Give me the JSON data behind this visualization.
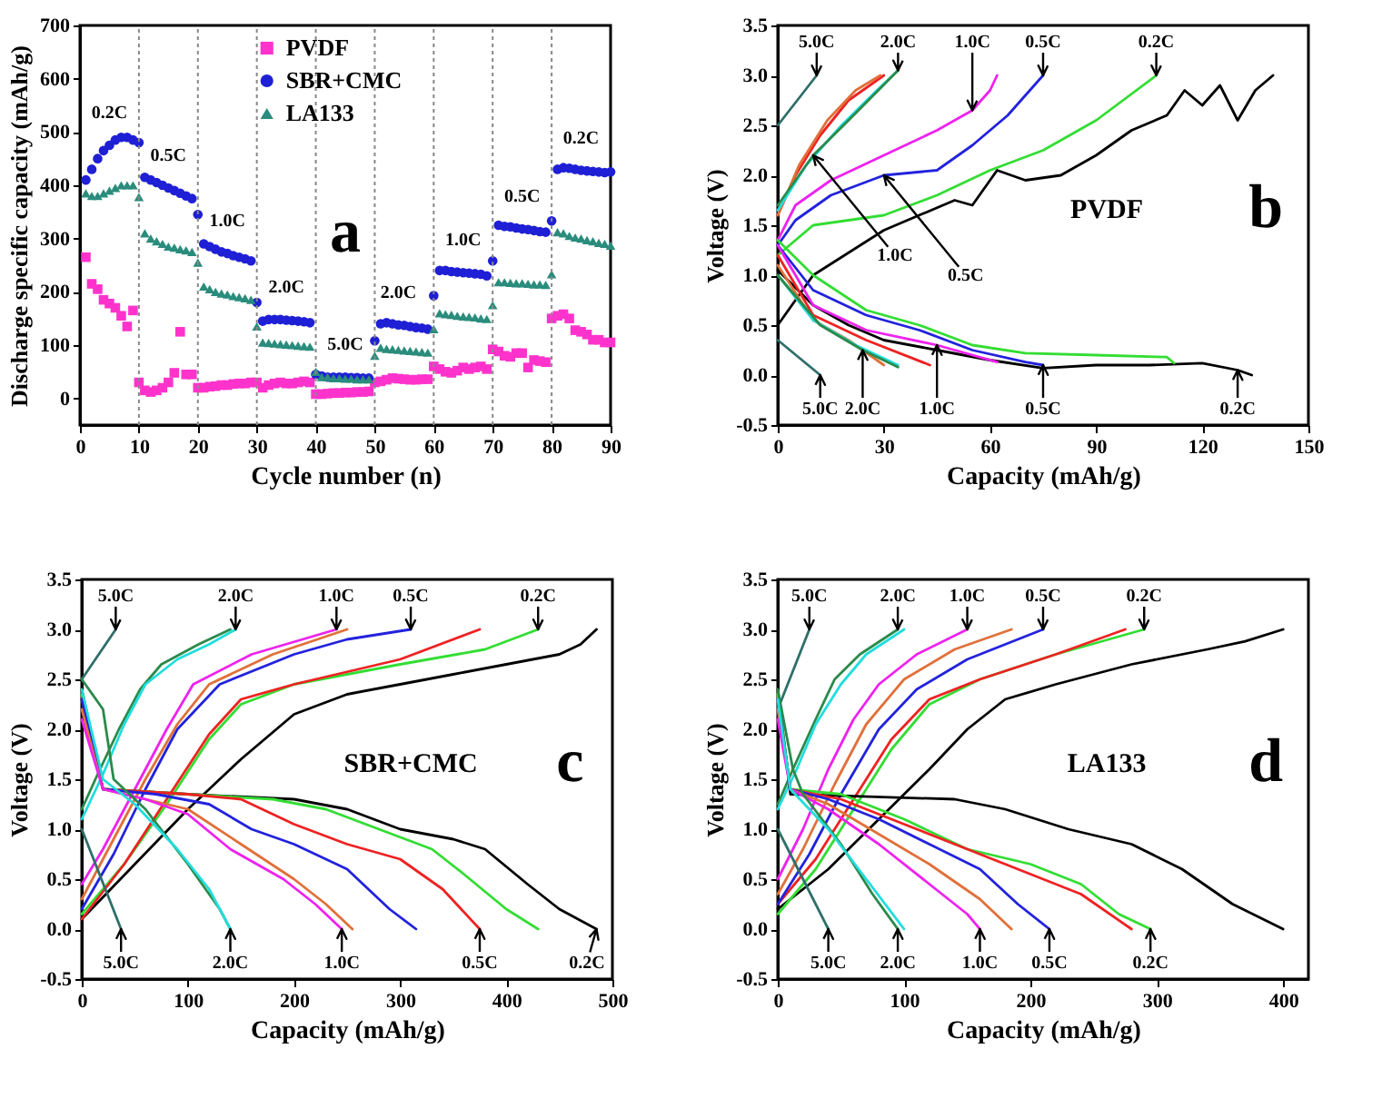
{
  "chart_data": [
    {
      "type": "scatter",
      "xlabel": "Cycle number (n)",
      "ylabel": "Discharge specific capacity (mAh/g)",
      "xlim": [
        0,
        90
      ],
      "ylim": [
        -50,
        700
      ],
      "xticks": [
        0,
        10,
        20,
        30,
        40,
        50,
        60,
        70,
        80,
        90
      ],
      "yticks": [
        0,
        100,
        200,
        300,
        400,
        500,
        600,
        700
      ],
      "legend": "top",
      "x": [
        1,
        2,
        3,
        4,
        5,
        6,
        7,
        8,
        9,
        10,
        11,
        12,
        13,
        14,
        15,
        16,
        17,
        18,
        19,
        20,
        21,
        22,
        23,
        24,
        25,
        26,
        27,
        28,
        29,
        30,
        31,
        32,
        33,
        34,
        35,
        36,
        37,
        38,
        39,
        40,
        41,
        42,
        43,
        44,
        45,
        46,
        47,
        48,
        49,
        50,
        51,
        52,
        53,
        54,
        55,
        56,
        57,
        58,
        59,
        60,
        61,
        62,
        63,
        64,
        65,
        66,
        67,
        68,
        69,
        70,
        71,
        72,
        73,
        74,
        75,
        76,
        77,
        78,
        79,
        80,
        81,
        82,
        83,
        84,
        85,
        86,
        87,
        88,
        89,
        90
      ],
      "series": [
        {
          "name": "PVDF",
          "color": "#ff33cc",
          "marker": "square",
          "values": [
            265,
            215,
            205,
            185,
            178,
            170,
            155,
            135,
            165,
            30,
            15,
            12,
            15,
            20,
            30,
            48,
            125,
            45,
            45,
            20,
            20,
            22,
            23,
            25,
            25,
            27,
            28,
            28,
            30,
            30,
            20,
            25,
            28,
            30,
            28,
            28,
            30,
            32,
            30,
            8,
            8,
            9,
            10,
            10,
            11,
            11,
            12,
            12,
            13,
            30,
            32,
            35,
            38,
            37,
            36,
            35,
            35,
            36,
            36,
            60,
            55,
            50,
            48,
            52,
            58,
            55,
            58,
            60,
            55,
            92,
            88,
            80,
            78,
            85,
            85,
            58,
            72,
            70,
            68,
            150,
            155,
            158,
            150,
            128,
            125,
            120,
            110,
            110,
            105,
            105
          ]
        },
        {
          "name": "SBR+CMC",
          "color": "#1f1fd6",
          "marker": "circle",
          "values": [
            410,
            430,
            450,
            465,
            475,
            485,
            490,
            490,
            485,
            480,
            415,
            410,
            405,
            400,
            395,
            390,
            385,
            380,
            375,
            345,
            290,
            285,
            280,
            275,
            272,
            268,
            265,
            262,
            258,
            180,
            145,
            148,
            148,
            148,
            147,
            146,
            145,
            144,
            142,
            45,
            42,
            40,
            40,
            40,
            40,
            39,
            39,
            38,
            38,
            108,
            140,
            142,
            140,
            138,
            137,
            135,
            133,
            132,
            130,
            193,
            240,
            240,
            238,
            237,
            236,
            235,
            234,
            233,
            230,
            258,
            325,
            323,
            322,
            320,
            318,
            317,
            315,
            313,
            312,
            333,
            430,
            433,
            432,
            430,
            428,
            427,
            426,
            425,
            424,
            425
          ]
        },
        {
          "name": "LA133",
          "color": "#2a8c7c",
          "marker": "triangle",
          "values": [
            385,
            380,
            380,
            385,
            390,
            395,
            400,
            400,
            400,
            378,
            310,
            300,
            295,
            290,
            285,
            283,
            280,
            278,
            275,
            255,
            210,
            205,
            200,
            197,
            195,
            192,
            190,
            188,
            185,
            135,
            105,
            104,
            103,
            102,
            101,
            100,
            99,
            98,
            97,
            50,
            40,
            40,
            38,
            38,
            37,
            37,
            36,
            36,
            36,
            80,
            95,
            93,
            92,
            91,
            90,
            89,
            88,
            87,
            86,
            130,
            160,
            158,
            157,
            155,
            154,
            153,
            152,
            150,
            149,
            175,
            218,
            218,
            217,
            216,
            216,
            215,
            214,
            214,
            213,
            233,
            312,
            310,
            305,
            302,
            300,
            297,
            295,
            292,
            290,
            287
          ]
        }
      ],
      "ref_lines": [
        {
          "axis": "x",
          "value": 10,
          "line_style": "dotted",
          "color": "#888888"
        },
        {
          "axis": "x",
          "value": 20,
          "line_style": "dotted",
          "color": "#888888"
        },
        {
          "axis": "x",
          "value": 30,
          "line_style": "dotted",
          "color": "#888888"
        },
        {
          "axis": "x",
          "value": 40,
          "line_style": "dotted",
          "color": "#888888"
        },
        {
          "axis": "x",
          "value": 50,
          "line_style": "dotted",
          "color": "#888888"
        },
        {
          "axis": "x",
          "value": 60,
          "line_style": "dotted",
          "color": "#888888"
        },
        {
          "axis": "x",
          "value": 70,
          "line_style": "dotted",
          "color": "#888888"
        },
        {
          "axis": "x",
          "value": 80,
          "line_style": "dotted",
          "color": "#888888"
        }
      ],
      "annotations": [
        {
          "text": "0.2C",
          "x": 5,
          "y": 475
        },
        {
          "text": "0.5C",
          "x": 15,
          "y": 395
        },
        {
          "text": "1.0C",
          "x": 25,
          "y": 272
        },
        {
          "text": "2.0C",
          "x": 35,
          "y": 147
        },
        {
          "text": "5.0C",
          "x": 45,
          "y": 40
        },
        {
          "text": "2.0C",
          "x": 54,
          "y": 138
        },
        {
          "text": "1.0C",
          "x": 65,
          "y": 236
        },
        {
          "text": "0.5C",
          "x": 75,
          "y": 318
        },
        {
          "text": "0.2C",
          "x": 85,
          "y": 428
        },
        "a"
      ]
    },
    {
      "type": "line",
      "xlabel": "Capacity (mAh/g)",
      "ylabel": "Voltage (V)",
      "xlim": [
        0,
        150
      ],
      "ylim": [
        -0.5,
        3.5
      ],
      "xticks": [
        0,
        30,
        60,
        90,
        120,
        150
      ],
      "yticks": [
        -0.5,
        {
          "value": 0,
          "label": "0.0"
        },
        0.5,
        {
          "value": 1,
          "label": "1.0"
        },
        1.5,
        {
          "value": 2,
          "label": "2.0"
        },
        2.5,
        {
          "value": 3,
          "label": "3.0"
        },
        3.5
      ],
      "series": [
        {
          "color": "#000000",
          "x": [
            0,
            10,
            30,
            50,
            55,
            62,
            70,
            80,
            90,
            100,
            110,
            115,
            120,
            125,
            130,
            135,
            140
          ],
          "values": [
            0.5,
            1.0,
            1.45,
            1.75,
            1.7,
            2.05,
            1.95,
            2.0,
            2.2,
            2.45,
            2.6,
            2.85,
            2.7,
            2.9,
            2.55,
            2.85,
            3.0
          ]
        },
        {
          "color": "#33dd33",
          "x": [
            0,
            10,
            30,
            45,
            60,
            75,
            90,
            107
          ],
          "values": [
            1.2,
            1.5,
            1.6,
            1.8,
            2.05,
            2.25,
            2.55,
            3.0
          ]
        },
        {
          "color": "#2222dd",
          "x": [
            0,
            5,
            15,
            30,
            45,
            55,
            65,
            75
          ],
          "values": [
            1.3,
            1.55,
            1.8,
            2.0,
            2.05,
            2.3,
            2.6,
            3.0
          ]
        },
        {
          "color": "#ee22ee",
          "x": [
            0,
            5,
            15,
            30,
            45,
            55,
            60,
            62
          ],
          "values": [
            1.35,
            1.7,
            1.95,
            2.2,
            2.45,
            2.65,
            2.85,
            3.0
          ]
        },
        {
          "color": "#ee2222",
          "x": [
            0,
            5,
            12,
            20,
            30
          ],
          "values": [
            1.6,
            2.0,
            2.4,
            2.75,
            3.0
          ]
        },
        {
          "color": "#e0703a",
          "x": [
            0,
            6,
            14,
            22,
            29
          ],
          "values": [
            1.6,
            2.1,
            2.55,
            2.85,
            3.0
          ]
        },
        {
          "color": "#22dddd",
          "x": [
            0,
            8,
            18,
            28,
            34
          ],
          "values": [
            1.65,
            2.1,
            2.5,
            2.85,
            3.05
          ]
        },
        {
          "color": "#2a8a4a",
          "x": [
            0,
            10,
            20,
            34
          ],
          "values": [
            1.7,
            2.2,
            2.55,
            3.05
          ]
        },
        {
          "color": "#2f6f6a",
          "x": [
            0,
            11
          ],
          "values": [
            2.5,
            3.0
          ]
        },
        {
          "color": "#000000",
          "x": [
            0,
            10,
            20,
            30,
            45,
            60,
            75,
            90,
            105,
            120,
            130,
            134
          ],
          "values": [
            1.05,
            0.7,
            0.5,
            0.35,
            0.25,
            0.15,
            0.07,
            0.1,
            0.1,
            0.12,
            0.05,
            0.0
          ]
        },
        {
          "color": "#33dd33",
          "x": [
            0,
            10,
            25,
            40,
            55,
            70,
            90,
            110,
            112
          ],
          "values": [
            1.35,
            1.0,
            0.65,
            0.5,
            0.3,
            0.22,
            0.2,
            0.18,
            0.12
          ]
        },
        {
          "color": "#2222dd",
          "x": [
            0,
            10,
            25,
            40,
            55,
            70,
            75
          ],
          "values": [
            1.3,
            0.85,
            0.6,
            0.45,
            0.25,
            0.13,
            0.1
          ]
        },
        {
          "color": "#ee22ee",
          "x": [
            0,
            10,
            25,
            45,
            62
          ],
          "values": [
            1.3,
            0.7,
            0.45,
            0.3,
            0.13
          ]
        },
        {
          "color": "#ee2222",
          "x": [
            0,
            10,
            25,
            43
          ],
          "values": [
            1.2,
            0.6,
            0.35,
            0.1
          ]
        },
        {
          "color": "#e0703a",
          "x": [
            0,
            10,
            20,
            30
          ],
          "values": [
            1.1,
            0.55,
            0.35,
            0.1
          ]
        },
        {
          "color": "#22dddd",
          "x": [
            0,
            10,
            22,
            34
          ],
          "values": [
            1.0,
            0.55,
            0.3,
            0.1
          ]
        },
        {
          "color": "#2a8a4a",
          "x": [
            0,
            12,
            24,
            34
          ],
          "values": [
            1.0,
            0.5,
            0.25,
            0.08
          ]
        },
        {
          "color": "#2f6f6a",
          "x": [
            0,
            12
          ],
          "values": [
            0.35,
            0.0
          ]
        }
      ],
      "annotations": [
        {
          "text": "5.0C",
          "x": 11,
          "y": 3.0
        },
        {
          "text": "2.0C",
          "x": 34,
          "y": 3.05
        },
        {
          "text": "1.0C",
          "x": 55,
          "y": 2.65
        },
        {
          "text": "0.5C",
          "x": 75,
          "y": 3.0
        },
        {
          "text": "0.2C",
          "x": 107,
          "y": 3.0
        },
        {
          "text": "1.0C",
          "x": 10,
          "y": 2.2
        },
        {
          "text": "0.5C",
          "x": 30,
          "y": 2.0
        },
        {
          "text": "5.0C",
          "x": 12,
          "y": 0.0
        },
        {
          "text": "2.0C",
          "x": 24,
          "y": 0.25
        },
        {
          "text": "1.0C",
          "x": 45,
          "y": 0.3
        },
        {
          "text": "0.5C",
          "x": 75,
          "y": 0.1
        },
        {
          "text": "0.2C",
          "x": 130,
          "y": 0.05
        },
        "PVDF",
        "b"
      ]
    },
    {
      "type": "line",
      "xlabel": "Capacity (mAh/g)",
      "ylabel": "Voltage (V)",
      "xlim": [
        0,
        500
      ],
      "ylim": [
        -0.5,
        3.5
      ],
      "xticks": [
        0,
        100,
        200,
        300,
        400,
        500
      ],
      "yticks": [
        -0.5,
        {
          "value": 0,
          "label": "0.0"
        },
        0.5,
        {
          "value": 1,
          "label": "1.0"
        },
        1.5,
        {
          "value": 2,
          "label": "2.0"
        },
        2.5,
        {
          "value": 3,
          "label": "3.0"
        },
        3.5
      ],
      "series": [
        {
          "color": "#000000",
          "x": [
            0,
            50,
            100,
            150,
            200,
            250,
            300,
            350,
            400,
            450,
            470,
            485
          ],
          "values": [
            0.1,
            0.65,
            1.2,
            1.7,
            2.15,
            2.35,
            2.45,
            2.55,
            2.65,
            2.75,
            2.85,
            3.0
          ]
        },
        {
          "color": "#33dd33",
          "x": [
            0,
            40,
            80,
            120,
            150,
            200,
            300,
            380,
            430
          ],
          "values": [
            0.15,
            0.65,
            1.25,
            1.9,
            2.25,
            2.45,
            2.65,
            2.8,
            3.0
          ]
        },
        {
          "color": "#ee2222",
          "x": [
            0,
            40,
            80,
            120,
            150,
            200,
            300,
            375
          ],
          "values": [
            0.1,
            0.65,
            1.3,
            1.95,
            2.3,
            2.45,
            2.7,
            3.0
          ]
        },
        {
          "color": "#2222dd",
          "x": [
            0,
            30,
            60,
            90,
            130,
            200,
            250,
            310
          ],
          "values": [
            0.2,
            0.75,
            1.4,
            2.0,
            2.45,
            2.75,
            2.9,
            3.0
          ]
        },
        {
          "color": "#e0703a",
          "x": [
            0,
            30,
            60,
            90,
            120,
            180,
            250
          ],
          "values": [
            0.3,
            0.9,
            1.5,
            2.05,
            2.45,
            2.75,
            3.0
          ]
        },
        {
          "color": "#ee22ee",
          "x": [
            0,
            20,
            50,
            80,
            105,
            160,
            240
          ],
          "values": [
            0.45,
            0.8,
            1.4,
            2.0,
            2.45,
            2.75,
            3.0
          ]
        },
        {
          "color": "#2a8a4a",
          "x": [
            0,
            15,
            35,
            55,
            75,
            110,
            140
          ],
          "values": [
            1.2,
            1.55,
            2.0,
            2.4,
            2.65,
            2.85,
            3.0
          ]
        },
        {
          "color": "#22dddd",
          "x": [
            0,
            20,
            40,
            60,
            90,
            120,
            145
          ],
          "values": [
            1.1,
            1.55,
            2.05,
            2.45,
            2.7,
            2.85,
            3.0
          ]
        },
        {
          "color": "#2f6f6a",
          "x": [
            0,
            32
          ],
          "values": [
            2.5,
            3.0
          ]
        },
        {
          "color": "#000000",
          "x": [
            0,
            20,
            100,
            200,
            250,
            300,
            350,
            380,
            420,
            450,
            485
          ],
          "values": [
            2.4,
            1.4,
            1.35,
            1.3,
            1.2,
            1.0,
            0.9,
            0.8,
            0.45,
            0.2,
            0.0
          ]
        },
        {
          "color": "#33dd33",
          "x": [
            0,
            20,
            100,
            180,
            230,
            280,
            330,
            360,
            400,
            430
          ],
          "values": [
            2.35,
            1.4,
            1.35,
            1.3,
            1.2,
            1.0,
            0.8,
            0.55,
            0.2,
            0.0
          ]
        },
        {
          "color": "#ee2222",
          "x": [
            0,
            20,
            100,
            150,
            200,
            250,
            300,
            340,
            375
          ],
          "values": [
            2.3,
            1.4,
            1.35,
            1.3,
            1.05,
            0.85,
            0.7,
            0.4,
            0.0
          ]
        },
        {
          "color": "#2222dd",
          "x": [
            0,
            20,
            70,
            120,
            160,
            200,
            250,
            290,
            315
          ],
          "values": [
            2.3,
            1.4,
            1.35,
            1.25,
            1.0,
            0.85,
            0.6,
            0.2,
            0.0
          ]
        },
        {
          "color": "#e0703a",
          "x": [
            0,
            20,
            60,
            100,
            150,
            200,
            230,
            255
          ],
          "values": [
            2.2,
            1.4,
            1.3,
            1.2,
            0.85,
            0.5,
            0.25,
            0.0
          ]
        },
        {
          "color": "#ee22ee",
          "x": [
            0,
            20,
            60,
            100,
            140,
            190,
            220,
            245
          ],
          "values": [
            2.1,
            1.4,
            1.3,
            1.15,
            0.8,
            0.5,
            0.25,
            0.0
          ]
        },
        {
          "color": "#2a8a4a",
          "x": [
            0,
            20,
            30,
            60,
            100,
            130,
            140
          ],
          "values": [
            2.5,
            2.2,
            1.5,
            1.2,
            0.65,
            0.2,
            0.0
          ]
        },
        {
          "color": "#22dddd",
          "x": [
            0,
            20,
            50,
            90,
            120,
            140
          ],
          "values": [
            2.4,
            1.5,
            1.25,
            0.8,
            0.4,
            0.0
          ]
        },
        {
          "color": "#2f6f6a",
          "x": [
            0,
            37
          ],
          "values": [
            1.0,
            0.0
          ]
        }
      ],
      "annotations": [
        {
          "text": "5.0C",
          "x": 32,
          "y": 3.0
        },
        {
          "text": "2.0C",
          "x": 145,
          "y": 3.0
        },
        {
          "text": "1.0C",
          "x": 240,
          "y": 3.0
        },
        {
          "text": "0.5C",
          "x": 310,
          "y": 3.0
        },
        {
          "text": "0.2C",
          "x": 430,
          "y": 3.0
        },
        {
          "text": "5.0C",
          "x": 37,
          "y": 0.0
        },
        {
          "text": "2.0C",
          "x": 140,
          "y": 0.0
        },
        {
          "text": "1.0C",
          "x": 245,
          "y": 0.0
        },
        {
          "text": "0.5C",
          "x": 375,
          "y": 0.0
        },
        {
          "text": "0.2C",
          "x": 485,
          "y": 0.0
        },
        "SBR+CMC",
        "c"
      ]
    },
    {
      "type": "line",
      "xlabel": "Capacity (mAh/g)",
      "ylabel": "Voltage (V)",
      "xlim": [
        0,
        420
      ],
      "ylim": [
        -0.5,
        3.5
      ],
      "xticks": [
        0,
        100,
        200,
        300,
        400
      ],
      "yticks": [
        -0.5,
        {
          "value": 0,
          "label": "0.0"
        },
        0.5,
        {
          "value": 1,
          "label": "1.0"
        },
        1.5,
        {
          "value": 2,
          "label": "2.0"
        },
        2.5,
        {
          "value": 3,
          "label": "3.0"
        },
        3.5
      ],
      "series": [
        {
          "color": "#000000",
          "x": [
            0,
            40,
            80,
            120,
            150,
            180,
            220,
            280,
            340,
            370,
            400
          ],
          "values": [
            0.2,
            0.6,
            1.1,
            1.6,
            2.0,
            2.3,
            2.45,
            2.65,
            2.8,
            2.88,
            3.0
          ]
        },
        {
          "color": "#33dd33",
          "x": [
            0,
            30,
            60,
            90,
            120,
            160,
            220,
            290
          ],
          "values": [
            0.15,
            0.6,
            1.2,
            1.8,
            2.25,
            2.5,
            2.75,
            3.0
          ]
        },
        {
          "color": "#ee2222",
          "x": [
            0,
            30,
            60,
            90,
            120,
            160,
            220,
            275
          ],
          "values": [
            0.25,
            0.7,
            1.3,
            1.9,
            2.3,
            2.5,
            2.75,
            3.0
          ]
        },
        {
          "color": "#2222dd",
          "x": [
            0,
            25,
            50,
            80,
            110,
            150,
            210
          ],
          "values": [
            0.25,
            0.75,
            1.35,
            2.0,
            2.4,
            2.7,
            3.0
          ]
        },
        {
          "color": "#e0703a",
          "x": [
            0,
            20,
            45,
            70,
            100,
            140,
            185
          ],
          "values": [
            0.35,
            0.8,
            1.45,
            2.05,
            2.5,
            2.8,
            3.0
          ]
        },
        {
          "color": "#ee22ee",
          "x": [
            0,
            20,
            40,
            60,
            80,
            110,
            150
          ],
          "values": [
            0.5,
            1.0,
            1.6,
            2.1,
            2.45,
            2.75,
            3.0
          ]
        },
        {
          "color": "#2a8a4a",
          "x": [
            0,
            12,
            30,
            45,
            65,
            95
          ],
          "values": [
            1.25,
            1.6,
            2.1,
            2.5,
            2.75,
            3.0
          ]
        },
        {
          "color": "#22dddd",
          "x": [
            0,
            15,
            30,
            50,
            70,
            100
          ],
          "values": [
            1.2,
            1.6,
            2.05,
            2.45,
            2.75,
            3.0
          ]
        },
        {
          "color": "#2f6f6a",
          "x": [
            0,
            25
          ],
          "values": [
            2.2,
            3.0
          ]
        },
        {
          "color": "#000000",
          "x": [
            0,
            10,
            60,
            140,
            180,
            230,
            280,
            320,
            360,
            400
          ],
          "values": [
            2.4,
            1.35,
            1.33,
            1.3,
            1.2,
            1.0,
            0.85,
            0.6,
            0.25,
            0.0
          ]
        },
        {
          "color": "#33dd33",
          "x": [
            0,
            10,
            50,
            100,
            150,
            200,
            240,
            270,
            295
          ],
          "values": [
            2.35,
            1.4,
            1.35,
            1.1,
            0.8,
            0.65,
            0.45,
            0.15,
            0.0
          ]
        },
        {
          "color": "#ee2222",
          "x": [
            0,
            10,
            50,
            100,
            150,
            200,
            240,
            280
          ],
          "values": [
            2.3,
            1.4,
            1.3,
            1.05,
            0.8,
            0.55,
            0.35,
            0.0
          ]
        },
        {
          "color": "#2222dd",
          "x": [
            0,
            10,
            40,
            80,
            120,
            160,
            190,
            215
          ],
          "values": [
            2.3,
            1.4,
            1.3,
            1.1,
            0.85,
            0.6,
            0.25,
            0.0
          ]
        },
        {
          "color": "#e0703a",
          "x": [
            0,
            10,
            40,
            80,
            120,
            160,
            185
          ],
          "values": [
            2.2,
            1.4,
            1.25,
            0.95,
            0.65,
            0.3,
            0.0
          ]
        },
        {
          "color": "#ee22ee",
          "x": [
            0,
            10,
            40,
            80,
            120,
            150,
            160
          ],
          "values": [
            2.1,
            1.4,
            1.2,
            0.85,
            0.45,
            0.15,
            0.0
          ]
        },
        {
          "color": "#2a8a4a",
          "x": [
            0,
            12,
            20,
            50,
            75,
            95
          ],
          "values": [
            2.4,
            1.6,
            1.35,
            0.85,
            0.35,
            0.0
          ]
        },
        {
          "color": "#22dddd",
          "x": [
            0,
            10,
            40,
            70,
            100
          ],
          "values": [
            2.3,
            1.4,
            1.0,
            0.5,
            0.0
          ]
        },
        {
          "color": "#2f6f6a",
          "x": [
            0,
            40
          ],
          "values": [
            1.0,
            0.0
          ]
        }
      ],
      "annotations": [
        {
          "text": "5.0C",
          "x": 25,
          "y": 3.0
        },
        {
          "text": "2.0C",
          "x": 95,
          "y": 3.0
        },
        {
          "text": "1.0C",
          "x": 150,
          "y": 3.0
        },
        {
          "text": "0.5C",
          "x": 210,
          "y": 3.0
        },
        {
          "text": "0.2C",
          "x": 290,
          "y": 3.0
        },
        {
          "text": "5.0C",
          "x": 40,
          "y": 0.0
        },
        {
          "text": "2.0C",
          "x": 95,
          "y": 0.0
        },
        {
          "text": "1.0C",
          "x": 160,
          "y": 0.0
        },
        {
          "text": "0.5C",
          "x": 215,
          "y": 0.0
        },
        {
          "text": "0.2C",
          "x": 295,
          "y": 0.0
        },
        "LA133",
        "d"
      ]
    }
  ]
}
